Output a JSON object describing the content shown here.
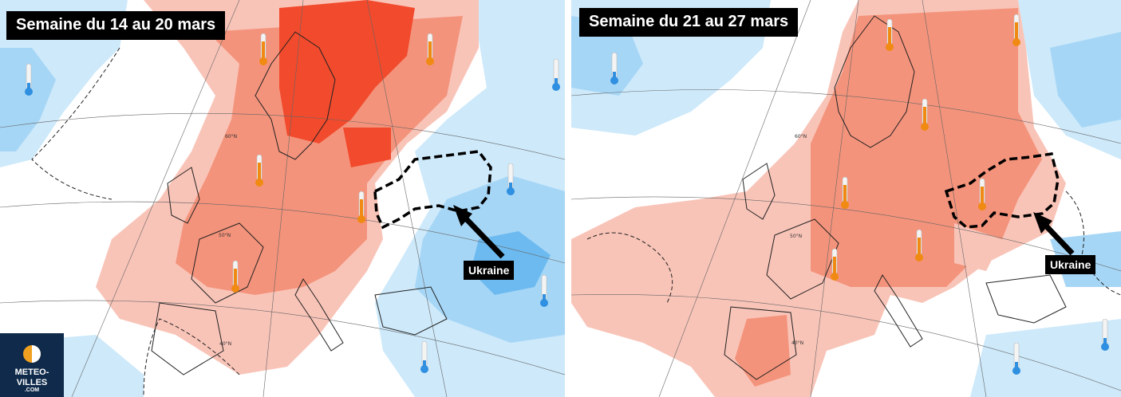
{
  "panels": {
    "left": {
      "title": "Semaine du 14 au 20 mars",
      "label": "Ukraine"
    },
    "right": {
      "title": "Semaine du 21 au 27 mars",
      "label": "Ukraine"
    }
  },
  "latitudes": {
    "lat60": "60°N",
    "lat50": "50°N",
    "lat40": "40°N"
  },
  "logo": {
    "name_line1": "METEO-",
    "name_line2": "VILLES",
    "domain": ".COM"
  },
  "legend_colors": {
    "warm_strong": "#f24a2c",
    "warm": "#f4937b",
    "warm_light": "#f9c4b8",
    "neutral": "#ffffff",
    "cold_light": "#cde9fa",
    "cold": "#a6d6f6",
    "cold_strong": "#6cbaf0"
  },
  "icons": {
    "warm_marker": "thermometer-warm-icon",
    "cold_marker": "thermometer-cold-icon",
    "arrow": "arrow-icon"
  }
}
